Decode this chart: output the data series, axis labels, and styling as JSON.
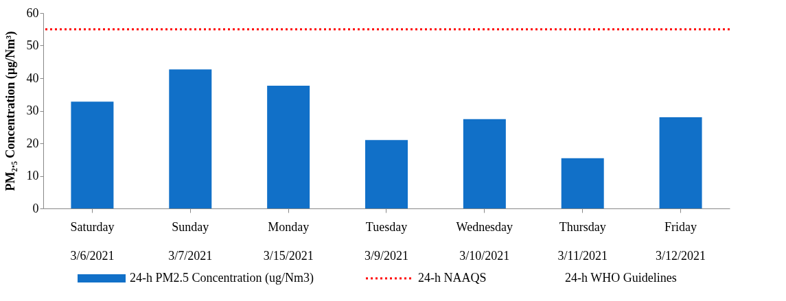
{
  "chart_data": {
    "type": "bar",
    "ylabel": "PM₂.₅ Concentration (µg/Nm³)",
    "categories": [
      "Saturday\n3/6/2021",
      "Sunday\n3/7/2021",
      "Monday\n3/15/2021",
      "Tuesday\n3/9/2021",
      "Wednesday\n3/10/2021",
      "Thursday\n3/11/2021",
      "Friday\n3/12/2021"
    ],
    "series": [
      {
        "name": "24-h PM2.5 Concentration (ug/Nm3)",
        "color": "#1170c8",
        "values": [
          32.8,
          42.7,
          37.7,
          21.0,
          27.4,
          15.4,
          28.0
        ]
      }
    ],
    "ylim": [
      0,
      60
    ],
    "yticks": [
      0,
      10,
      20,
      30,
      40,
      50,
      60
    ],
    "grid": false,
    "legend": "bottom",
    "ref_lines": [
      {
        "axis": "y",
        "value": 55,
        "label": "24-h NAAQS",
        "color": "#ff0000",
        "line_style": "dotted"
      }
    ],
    "annotations": [
      "24-h WHO Guidelines"
    ]
  }
}
